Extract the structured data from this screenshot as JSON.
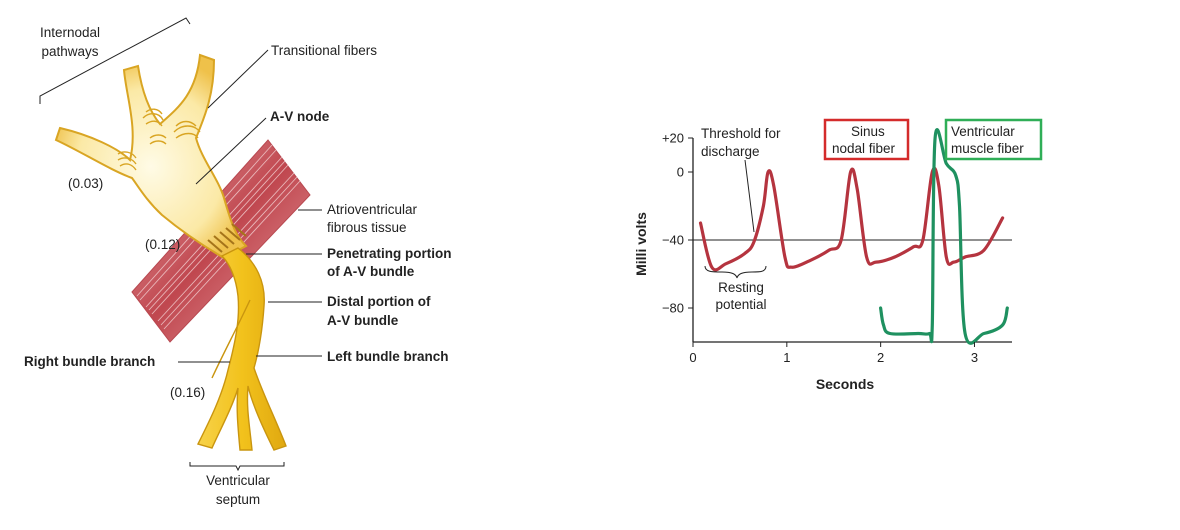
{
  "anatomy": {
    "internodal_pathways": [
      "Internodal",
      "pathways"
    ],
    "transitional_fibers": "Transitional fibers",
    "av_node": "A-V node",
    "atrioventricular_fibrous_tissue": [
      "Atrioventricular",
      "fibrous tissue"
    ],
    "penetrating_portion": [
      "Penetrating portion",
      "of A-V bundle"
    ],
    "distal_portion": [
      "Distal portion of",
      "A-V bundle"
    ],
    "left_bundle_branch": "Left bundle branch",
    "right_bundle_branch": "Right bundle branch",
    "ventricular_septum": [
      "Ventricular",
      "septum"
    ],
    "times": {
      "t1": "(0.03)",
      "t2": "(0.12)",
      "t3": "(0.16)"
    }
  },
  "chart_data": {
    "type": "line",
    "xlabel": "Seconds",
    "ylabel": "Milli volts",
    "xlim": [
      0,
      3.4
    ],
    "ylim": [
      -100,
      20
    ],
    "xticks": [
      "0",
      "1",
      "2",
      "3"
    ],
    "yticks": [
      "+20",
      "0",
      "−40",
      "−80"
    ],
    "threshold_mv": -40,
    "series": [
      {
        "name": "Sinus nodal fiber",
        "color": "#b5343f",
        "x": [
          0.08,
          0.2,
          0.35,
          0.55,
          0.65,
          0.75,
          0.8,
          0.86,
          0.98,
          1.05,
          1.25,
          1.45,
          1.58,
          1.68,
          1.75,
          1.85,
          1.95,
          2.15,
          2.35,
          2.45,
          2.55,
          2.62,
          2.7,
          2.78,
          2.9,
          3.1,
          3.3
        ],
        "values": [
          -30,
          -56,
          -54,
          -48,
          -41,
          -20,
          0,
          -8,
          -50,
          -56,
          -52,
          -46,
          -40,
          0,
          -10,
          -50,
          -53,
          -50,
          -44,
          -40,
          0,
          -8,
          -50,
          -53,
          -50,
          -46,
          -27
        ]
      },
      {
        "name": "Ventricular muscle fiber",
        "color": "#1f9160",
        "x": [
          2.0,
          2.03,
          2.1,
          2.4,
          2.52,
          2.55,
          2.58,
          2.7,
          2.8,
          2.84,
          2.9,
          3.1,
          3.3,
          3.35
        ],
        "values": [
          -80,
          -90,
          -95,
          -95,
          -95,
          -90,
          20,
          5,
          -2,
          -20,
          -95,
          -95,
          -90,
          -80
        ]
      }
    ],
    "annotations": {
      "threshold": [
        "Threshold for",
        "discharge"
      ],
      "resting": [
        "Resting",
        "potential"
      ],
      "sinus_box": [
        "Sinus",
        "nodal fiber"
      ],
      "ventricular_box": [
        "Ventricular",
        "muscle fiber"
      ]
    },
    "colors": {
      "sinus_box": "#d42b2b",
      "ventricular_box": "#2fae57"
    }
  }
}
